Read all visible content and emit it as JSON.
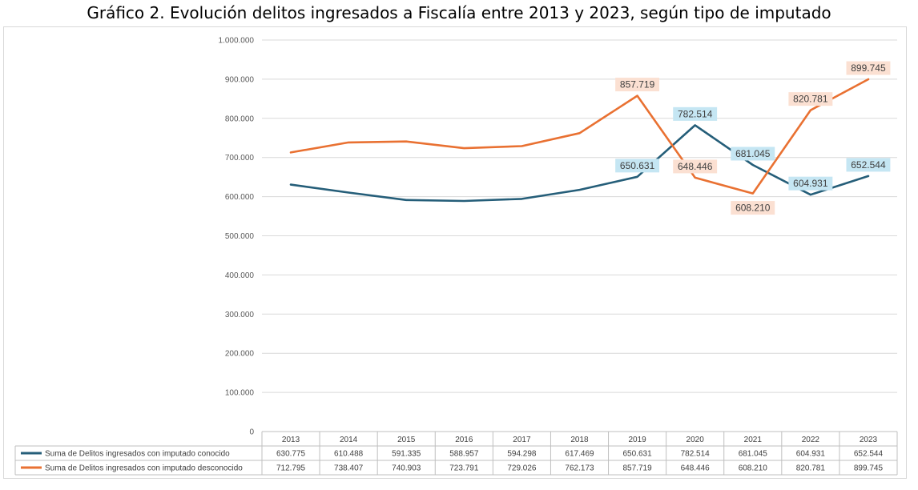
{
  "chart_data": {
    "type": "line",
    "title": "Gráfico 2. Evolución delitos ingresados a Fiscalía entre 2013 y 2023, según tipo de imputado",
    "categories": [
      "2013",
      "2014",
      "2015",
      "2016",
      "2017",
      "2018",
      "2019",
      "2020",
      "2021",
      "2022",
      "2023"
    ],
    "ylim": [
      0,
      1000000
    ],
    "yticks": [
      0,
      100000,
      200000,
      300000,
      400000,
      500000,
      600000,
      700000,
      800000,
      900000,
      1000000
    ],
    "ytick_labels": [
      "0",
      "100.000",
      "200.000",
      "300.000",
      "400.000",
      "500.000",
      "600.000",
      "700.000",
      "800.000",
      "900.000",
      "1.000.000"
    ],
    "grid": true,
    "legend": "data-table-below",
    "series": [
      {
        "name": "Suma de Delitos ingresados con imputado conocido",
        "color": "#255e79",
        "values": [
          630775,
          610488,
          591335,
          588957,
          594298,
          617469,
          650631,
          782514,
          681045,
          604931,
          652544
        ],
        "table_values": [
          "630.775",
          "610.488",
          "591.335",
          "588.957",
          "594.298",
          "617.469",
          "650.631",
          "782.514",
          "681.045",
          "604.931",
          "652.544"
        ],
        "labeled_points": [
          {
            "category": "2019",
            "text": "650.631"
          },
          {
            "category": "2020",
            "text": "782.514"
          },
          {
            "category": "2021",
            "text": "681.045"
          },
          {
            "category": "2022",
            "text": "604.931"
          },
          {
            "category": "2023",
            "text": "652.544"
          }
        ],
        "label_bg": "#c5e6f3"
      },
      {
        "name": "Suma de Delitos ingresados con imputado desconocido",
        "color": "#e97132",
        "values": [
          712795,
          738407,
          740903,
          723791,
          729026,
          762173,
          857719,
          648446,
          608210,
          820781,
          899745
        ],
        "table_values": [
          "712.795",
          "738.407",
          "740.903",
          "723.791",
          "729.026",
          "762.173",
          "857.719",
          "648.446",
          "608.210",
          "820.781",
          "899.745"
        ],
        "labeled_points": [
          {
            "category": "2019",
            "text": "857.719"
          },
          {
            "category": "2020",
            "text": "648.446"
          },
          {
            "category": "2021",
            "text": "608.210"
          },
          {
            "category": "2022",
            "text": "820.781"
          },
          {
            "category": "2023",
            "text": "899.745"
          }
        ],
        "label_bg": "#fbe0d2"
      }
    ]
  }
}
